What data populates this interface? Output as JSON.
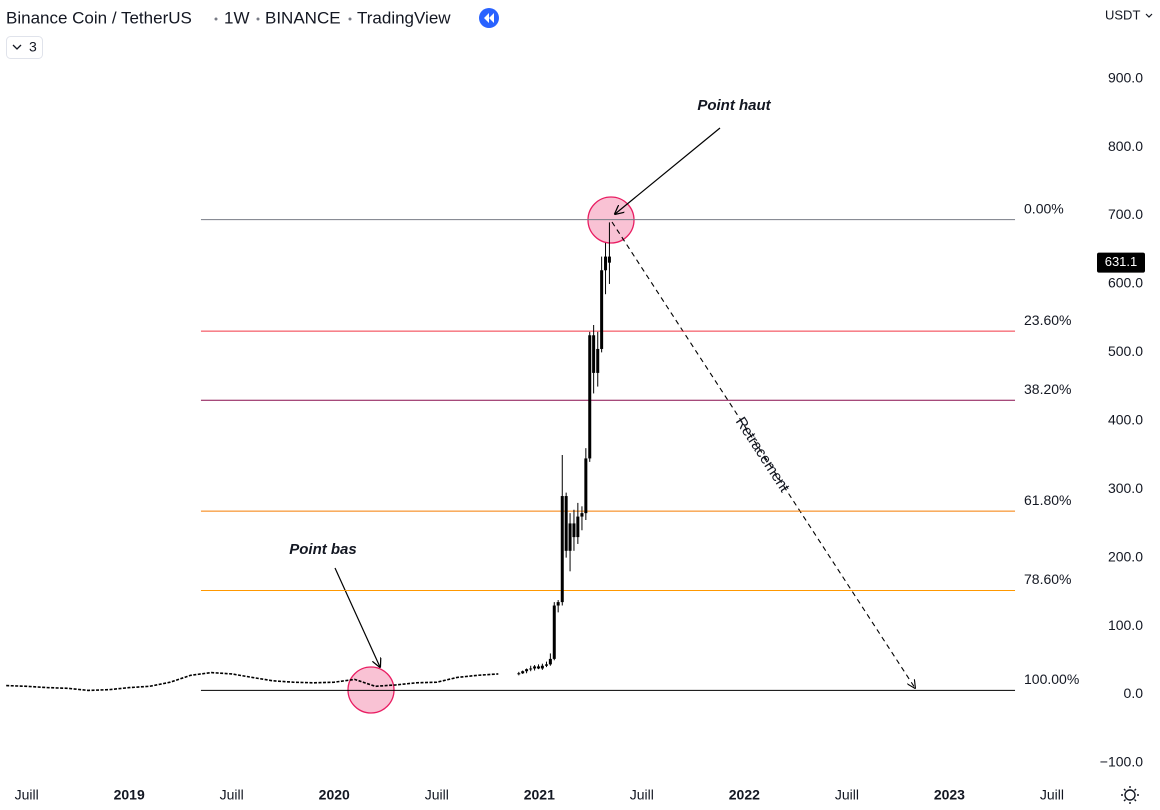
{
  "header": {
    "symbol": "Binance Coin / TetherUS",
    "interval": "1W",
    "exchange": "BINANCE",
    "source": "TradingView",
    "indicator_count": "3",
    "currency": "USDT"
  },
  "chart_data": {
    "type": "candlestick",
    "xlim": [
      2018.37,
      2023.71
    ],
    "xticks": [
      {
        "value": 2018.5,
        "label": "Juill"
      },
      2019,
      {
        "value": 2019.5,
        "label": "Juill"
      },
      2020,
      {
        "value": 2020.5,
        "label": "Juill"
      },
      2021,
      {
        "value": 2021.5,
        "label": "Juill"
      },
      2022,
      {
        "value": 2022.5,
        "label": "Juill"
      },
      2023,
      {
        "value": 2023.5,
        "label": "Juill"
      }
    ],
    "ylim": [
      -125,
      1015
    ],
    "yticks": [
      {
        "value": -100,
        "label": "−100.0"
      },
      {
        "value": 0,
        "label": "0.0"
      },
      {
        "value": 100,
        "label": "100.0"
      },
      {
        "value": 200,
        "label": "200.0"
      },
      {
        "value": 300,
        "label": "300.0"
      },
      {
        "value": 400,
        "label": "400.0"
      },
      {
        "value": 500,
        "label": "500.0"
      },
      {
        "value": 600,
        "label": "600.0"
      },
      {
        "value": 700,
        "label": "700.0"
      },
      {
        "value": 800,
        "label": "800.0"
      },
      {
        "value": 900,
        "label": "900.0"
      }
    ],
    "color": "#000000",
    "line": {
      "x": [
        2018.4,
        2018.5,
        2018.6,
        2018.7,
        2018.8,
        2018.9,
        2019.0,
        2019.1,
        2019.2,
        2019.3,
        2019.4,
        2019.5,
        2019.6,
        2019.7,
        2019.8,
        2019.9,
        2020.0,
        2020.1,
        2020.2,
        2020.3,
        2020.4,
        2020.5,
        2020.6,
        2020.7,
        2020.8
      ],
      "values": [
        13,
        12,
        10,
        9,
        6,
        7,
        10,
        12,
        18,
        28,
        32,
        30,
        25,
        20,
        18,
        17,
        18,
        22,
        12,
        14,
        17,
        18,
        25,
        28,
        30
      ]
    },
    "candles": {
      "x": [
        2020.9,
        2020.919,
        2020.938,
        2020.958,
        2020.977,
        2020.996,
        2021.015,
        2021.035,
        2021.054,
        2021.073,
        2021.092,
        2021.112,
        2021.131,
        2021.15,
        2021.169,
        2021.188,
        2021.208,
        2021.227,
        2021.246,
        2021.265,
        2021.285,
        2021.304,
        2021.323,
        2021.342
      ],
      "open": [
        30,
        31,
        34,
        37,
        38,
        41,
        38,
        42,
        44,
        52,
        130,
        135,
        290,
        210,
        250,
        230,
        260,
        265,
        345,
        525,
        470,
        505,
        620,
        640
      ],
      "high": [
        33,
        35,
        38,
        42,
        43,
        44,
        45,
        48,
        60,
        135,
        138,
        350,
        295,
        265,
        270,
        280,
        275,
        360,
        530,
        540,
        530,
        640,
        660,
        690
      ],
      "low": [
        28,
        30,
        31,
        34,
        35,
        37,
        36,
        40,
        42,
        50,
        120,
        130,
        200,
        180,
        210,
        220,
        240,
        255,
        340,
        440,
        450,
        500,
        585,
        600
      ],
      "close": [
        31,
        34,
        37,
        38,
        41,
        38,
        42,
        44,
        52,
        130,
        135,
        290,
        210,
        250,
        230,
        260,
        265,
        345,
        525,
        470,
        505,
        620,
        640,
        631.1
      ]
    },
    "last_price": 631.1,
    "fib_range": [
      2019.35,
      2023.32
    ],
    "fib_levels": [
      {
        "label": "0.00%",
        "price": 694,
        "color": "#787b86"
      },
      {
        "label": "23.60%",
        "price": 531,
        "color": "#f23645"
      },
      {
        "label": "38.20%",
        "price": 430,
        "color": "#880e4f"
      },
      {
        "label": "61.80%",
        "price": 268,
        "color": "#f57c00"
      },
      {
        "label": "78.60%",
        "price": 152,
        "color": "#ff9800"
      },
      {
        "label": "100.00%",
        "price": 6,
        "color": "#000000"
      }
    ],
    "annotations": {
      "high": "Point haut",
      "low": "Point bas",
      "retracement": "Retracement"
    }
  }
}
